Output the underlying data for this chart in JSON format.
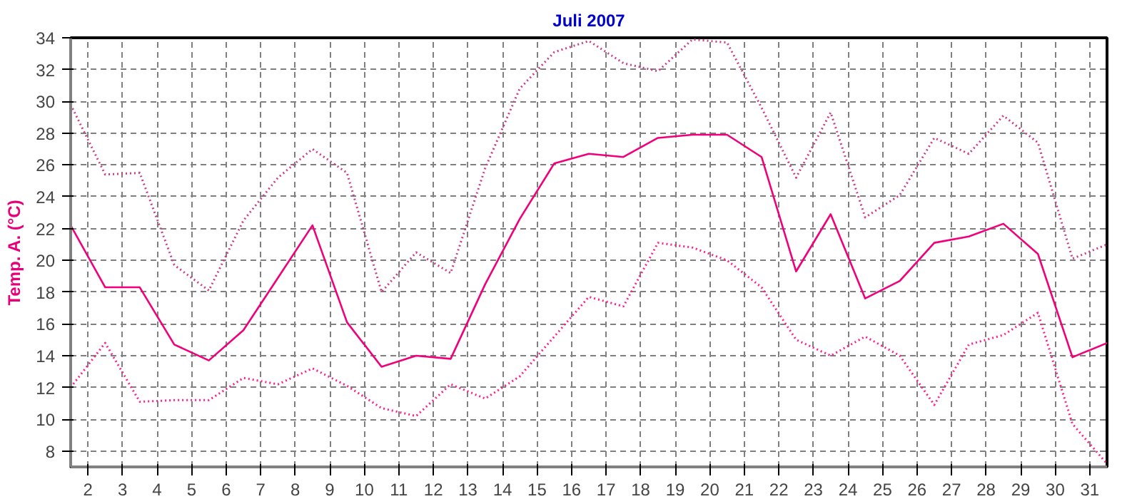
{
  "chart_data": {
    "type": "line",
    "title": "Juli 2007",
    "ylabel": "Temp. A. (°C)",
    "x": [
      1.5,
      2.5,
      3.5,
      4.5,
      5.5,
      6.5,
      7.5,
      8.5,
      9.5,
      10.5,
      11.5,
      12.5,
      13.5,
      14.5,
      15.5,
      16.5,
      17.5,
      18.5,
      19.5,
      20.5,
      21.5,
      22.5,
      23.5,
      24.5,
      25.5,
      26.5,
      27.5,
      28.5,
      29.5,
      30.5,
      31.5
    ],
    "series": [
      {
        "color": "#c8408c",
        "line_style": "dotted",
        "values": [
          29.8,
          25.4,
          25.5,
          19.7,
          18.1,
          22.5,
          25.2,
          27.0,
          25.5,
          18.0,
          20.5,
          19.2,
          25.8,
          30.8,
          33.1,
          33.8,
          32.4,
          31.9,
          33.9,
          33.7,
          29.6,
          25.2,
          29.3,
          22.7,
          24.1,
          27.7,
          26.7,
          29.1,
          27.4,
          20.1,
          21.0
        ]
      },
      {
        "color": "#f0007a",
        "line_style": "solid",
        "values": [
          22.2,
          18.3,
          18.3,
          14.7,
          13.7,
          15.6,
          18.9,
          22.2,
          16.1,
          13.3,
          14.0,
          13.8,
          18.5,
          22.6,
          26.1,
          26.7,
          26.5,
          27.7,
          27.9,
          27.9,
          26.5,
          19.3,
          22.9,
          17.6,
          18.7,
          21.1,
          21.5,
          22.3,
          20.4,
          13.9,
          14.8
        ]
      },
      {
        "color": "#ff2090",
        "line_style": "dotted",
        "values": [
          12.0,
          14.8,
          11.1,
          11.2,
          11.2,
          12.6,
          12.2,
          13.2,
          12.1,
          10.7,
          10.2,
          12.2,
          11.3,
          12.7,
          15.2,
          17.7,
          17.1,
          21.1,
          20.8,
          20.0,
          18.3,
          15.0,
          14.0,
          15.2,
          14.0,
          10.9,
          14.7,
          15.3,
          16.7,
          9.7,
          7.2
        ]
      }
    ],
    "xlim": [
      1.5,
      31.5
    ],
    "xticks": [
      2,
      3,
      4,
      5,
      6,
      7,
      8,
      9,
      10,
      11,
      12,
      13,
      14,
      15,
      16,
      17,
      18,
      19,
      20,
      21,
      22,
      23,
      24,
      25,
      26,
      27,
      28,
      29,
      30,
      31
    ],
    "ylim": [
      7,
      34
    ],
    "yticks": [
      8,
      10,
      12,
      14,
      16,
      18,
      20,
      22,
      24,
      26,
      28,
      30,
      32,
      34
    ],
    "grid": true,
    "marker": "none"
  }
}
